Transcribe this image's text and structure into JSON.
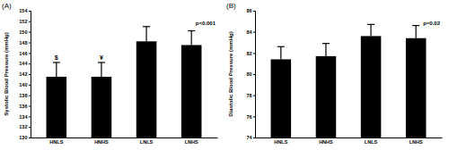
{
  "chart_data": [
    {
      "type": "bar",
      "title": "(A)",
      "y_label": "Systolic Blood Pressure (mmHg)",
      "categories": [
        "HNLS",
        "HNHS",
        "LNLS",
        "LNHS"
      ],
      "values": [
        141.5,
        141.5,
        148.2,
        147.5
      ],
      "error": [
        2.7,
        2.7,
        2.8,
        2.7
      ],
      "error_labels": [
        "$",
        "¥",
        null,
        null
      ],
      "annotation": "p<0.001",
      "color": "#000000",
      "ylim": [
        130,
        154
      ],
      "yticks": [
        130,
        132,
        134,
        136,
        138,
        140,
        142,
        144,
        146,
        148,
        150,
        152,
        154
      ],
      "grid": false
    },
    {
      "type": "bar",
      "title": "(B)",
      "y_label": "Diastolic Blood Pressure (mmHg)",
      "categories": [
        "HNLS",
        "HNHS",
        "LNLS",
        "LNHS"
      ],
      "values": [
        81.4,
        81.7,
        83.6,
        83.4
      ],
      "error": [
        1.2,
        1.2,
        1.1,
        1.2
      ],
      "annotation": "p=0.02",
      "color": "#000000",
      "ylim": [
        74,
        86
      ],
      "yticks": [
        74,
        76,
        78,
        80,
        82,
        84,
        86
      ],
      "grid": false
    }
  ]
}
